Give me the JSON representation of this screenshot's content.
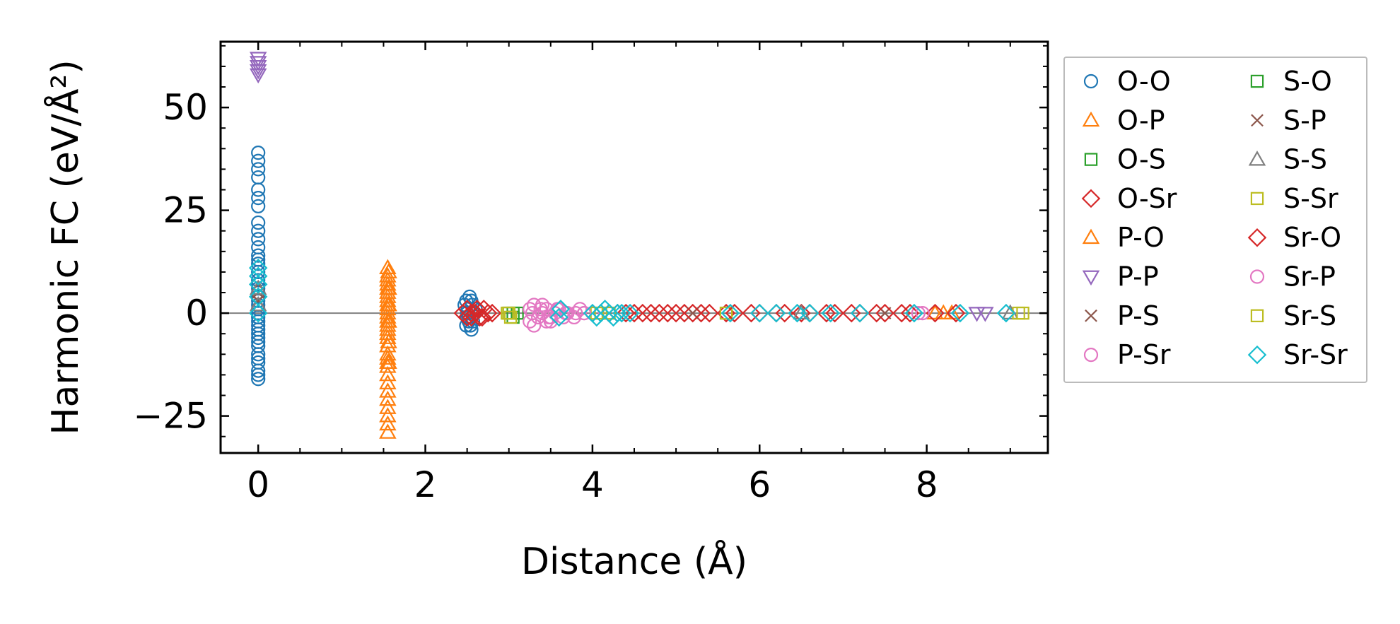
{
  "chart_data": {
    "type": "scatter",
    "xlabel": "Distance (Å)",
    "ylabel": "Harmonic FC (eV/Å²)",
    "xlim": [
      -0.45,
      9.45
    ],
    "ylim": [
      -34,
      66
    ],
    "x_ticks": [
      0,
      2,
      4,
      6,
      8
    ],
    "x_tick_labels": [
      "0",
      "2",
      "4",
      "6",
      "8"
    ],
    "y_ticks": [
      -25,
      0,
      25,
      50
    ],
    "y_tick_labels": [
      "−25",
      "0",
      "25",
      "50"
    ],
    "zero_line": true,
    "grid": false,
    "legend_position": "right, outside plot",
    "series": [
      {
        "name": "O-O",
        "marker": "circle",
        "color": "#1f77b4",
        "x": [
          0,
          0,
          0,
          0,
          0,
          0,
          0,
          0,
          0,
          0,
          0,
          0,
          0,
          0,
          0,
          0,
          0,
          0,
          0,
          0,
          0,
          0,
          0,
          0,
          0,
          0,
          0,
          0,
          0,
          0,
          0,
          0,
          0,
          0,
          0,
          0,
          0,
          0,
          2.47,
          2.49,
          2.5,
          2.51,
          2.52,
          2.53,
          2.54,
          2.55,
          2.56,
          2.58,
          2.6,
          2.5,
          2.52,
          2.55,
          2.57,
          2.49
        ],
        "y": [
          39,
          37,
          35,
          33,
          30,
          28,
          26,
          22,
          20,
          18,
          16,
          14,
          13,
          12,
          10,
          8,
          7,
          6,
          5,
          4,
          3,
          2,
          1,
          0,
          -1,
          -2,
          -3,
          -4,
          -5,
          -6,
          -7,
          -8,
          -10,
          -11,
          -12,
          -14,
          -15,
          -16,
          2,
          3,
          -1,
          1,
          -2,
          4,
          -3,
          -4,
          2,
          0,
          1,
          0,
          -1,
          3,
          -2,
          -3
        ]
      },
      {
        "name": "O-P",
        "marker": "triangle-up",
        "color": "#ff7f0e",
        "x": [
          1.55,
          1.55,
          1.55,
          1.55,
          1.55,
          1.55,
          1.55,
          1.55,
          1.55,
          1.55,
          1.55,
          1.55,
          1.55,
          1.55,
          1.55,
          1.55,
          1.55,
          1.55,
          1.55,
          1.55,
          1.55,
          1.55,
          1.55,
          1.55,
          1.55,
          1.55,
          1.55,
          1.55,
          1.55,
          1.55,
          8.1,
          8.2
        ],
        "y": [
          11,
          9,
          8,
          7,
          6,
          5,
          4,
          3,
          2,
          1,
          0,
          -1,
          -2,
          -3,
          -4,
          -5,
          -6,
          -8,
          -10,
          -11,
          -12,
          -13,
          -15,
          -17,
          -19,
          -21,
          -23,
          -25,
          -27,
          -29,
          0,
          0
        ]
      },
      {
        "name": "O-S",
        "marker": "square",
        "color": "#2ca02c",
        "x": [
          3.05,
          3.1
        ],
        "y": [
          0,
          0
        ]
      },
      {
        "name": "O-Sr",
        "marker": "diamond",
        "color": "#d62728",
        "x": [
          2.45,
          2.5,
          2.55,
          2.6,
          2.65,
          2.7,
          2.8,
          4.3,
          4.5,
          4.7,
          4.9,
          5.1,
          5.3,
          5.6,
          5.9,
          6.2,
          6.5,
          6.8,
          7.1,
          7.4,
          7.7
        ],
        "y": [
          0,
          1,
          -1,
          0,
          -1,
          1,
          0,
          0,
          0,
          0,
          0,
          0,
          0,
          0,
          0,
          0,
          0,
          0,
          0,
          0,
          0
        ]
      },
      {
        "name": "P-O",
        "marker": "triangle-up",
        "color": "#ff7f0e",
        "x": [
          1.56,
          1.56,
          1.56,
          1.56,
          1.56,
          1.56,
          8.3
        ],
        "y": [
          10,
          6,
          2,
          -2,
          -7,
          -12,
          0
        ]
      },
      {
        "name": "P-P",
        "marker": "triangle-down",
        "color": "#9467bd",
        "x": [
          0,
          0,
          0,
          0,
          0,
          8.6,
          8.7
        ],
        "y": [
          62,
          61,
          60,
          59,
          58,
          0,
          0
        ]
      },
      {
        "name": "P-S",
        "marker": "x",
        "color": "#8c564b",
        "x": [
          0,
          0,
          5.2,
          7.5
        ],
        "y": [
          7,
          3,
          0,
          0
        ]
      },
      {
        "name": "P-Sr",
        "marker": "circle",
        "color": "#e377c2",
        "x": [
          3.25,
          3.3,
          3.35,
          3.4,
          3.45,
          3.5,
          3.55,
          3.3,
          3.4,
          3.5,
          3.6,
          3.7,
          3.8,
          3.9,
          4.0,
          3.25,
          3.45,
          3.65,
          3.85,
          7.9
        ],
        "y": [
          1,
          2,
          -1,
          0,
          1,
          -2,
          0,
          -3,
          2,
          -1,
          1,
          0,
          0,
          0,
          0,
          -2,
          -2,
          -1,
          1,
          0
        ]
      },
      {
        "name": "S-O",
        "marker": "square",
        "color": "#2ca02c",
        "x": [
          3.0,
          3.05
        ],
        "y": [
          0,
          -1
        ]
      },
      {
        "name": "S-P",
        "marker": "x",
        "color": "#8c564b",
        "x": [
          0,
          5.3
        ],
        "y": [
          5,
          0
        ]
      },
      {
        "name": "S-S",
        "marker": "triangle-up",
        "color": "#7f7f7f",
        "x": [
          0,
          0,
          6.5,
          9.0
        ],
        "y": [
          6,
          2,
          0,
          0
        ]
      },
      {
        "name": "S-Sr",
        "marker": "square",
        "color": "#bcbd22",
        "x": [
          2.98,
          3.02,
          4.05,
          4.2,
          5.6,
          9.1
        ],
        "y": [
          0,
          -1,
          0,
          0,
          0,
          0
        ]
      },
      {
        "name": "Sr-O",
        "marker": "diamond",
        "color": "#d62728",
        "x": [
          2.5,
          2.55,
          2.62,
          2.68,
          2.75,
          4.2,
          4.4,
          4.6,
          4.8,
          5.0,
          5.2,
          5.4,
          5.7,
          6.0,
          6.3,
          6.6,
          6.9,
          7.2,
          7.5,
          7.8,
          8.1,
          8.35
        ],
        "y": [
          -1,
          0,
          1,
          -1,
          0,
          0,
          0,
          0,
          0,
          0,
          0,
          0,
          0,
          0,
          0,
          0,
          0,
          0,
          0,
          0,
          0,
          0
        ]
      },
      {
        "name": "Sr-P",
        "marker": "circle",
        "color": "#e377c2",
        "x": [
          3.28,
          3.38,
          3.48,
          3.58,
          3.68,
          3.78,
          3.9,
          7.95
        ],
        "y": [
          0,
          1,
          -1,
          1,
          0,
          -1,
          0,
          0
        ]
      },
      {
        "name": "Sr-S",
        "marker": "square",
        "color": "#bcbd22",
        "x": [
          3.0,
          4.1,
          9.15
        ],
        "y": [
          0,
          0,
          0
        ]
      },
      {
        "name": "Sr-Sr",
        "marker": "diamond",
        "color": "#17becf",
        "x": [
          0,
          0,
          0,
          0,
          0,
          3.6,
          3.62,
          4.0,
          4.05,
          4.1,
          4.15,
          4.2,
          4.25,
          4.3,
          4.35,
          4.45,
          5.65,
          6.0,
          6.2,
          6.45,
          6.6,
          6.85,
          7.2,
          7.85,
          8.4,
          8.95
        ],
        "y": [
          11,
          9,
          7,
          4,
          0,
          -1,
          1,
          0,
          -1,
          0,
          1,
          0,
          -1,
          0,
          0,
          0,
          0,
          0,
          0,
          0,
          0,
          0,
          0,
          0,
          0,
          0
        ]
      }
    ]
  }
}
